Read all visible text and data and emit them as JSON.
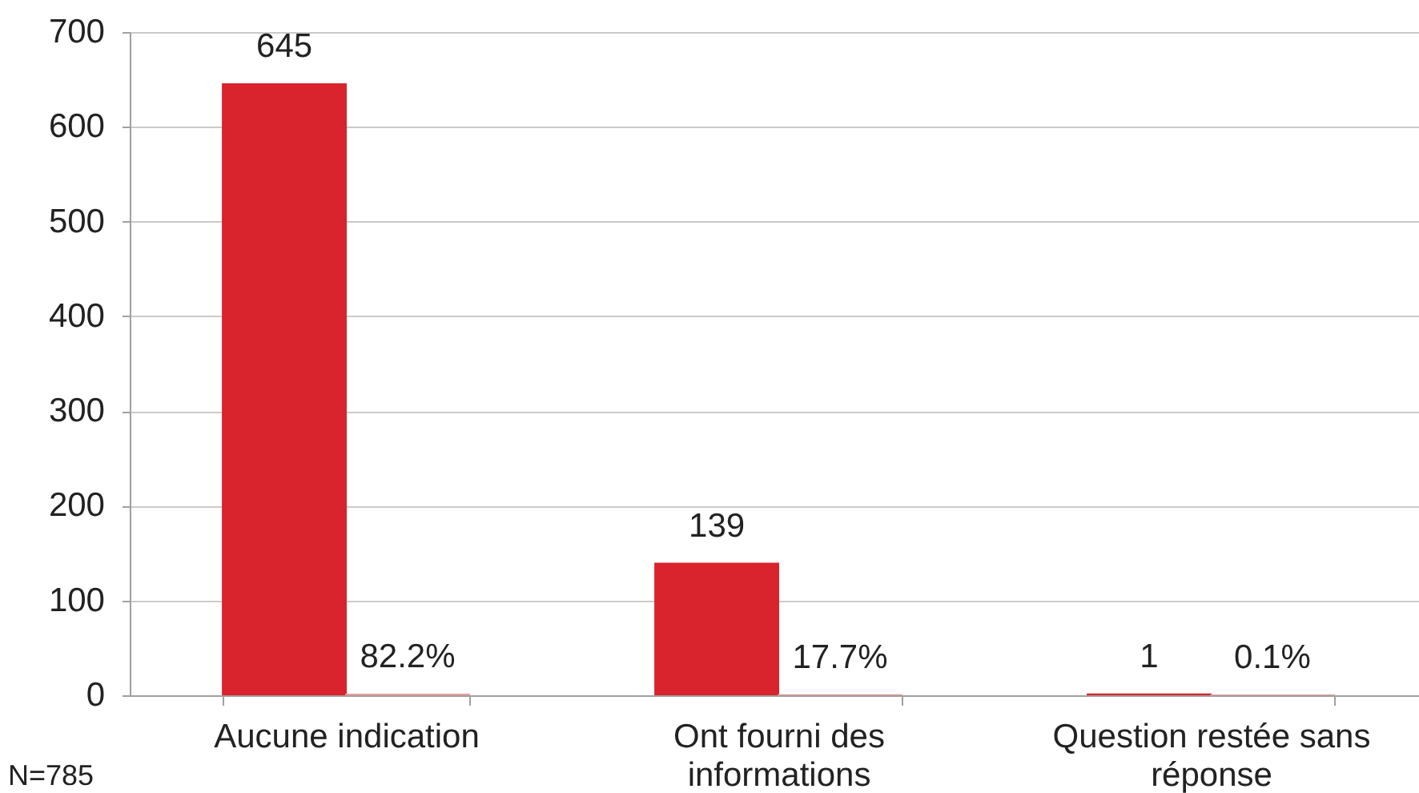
{
  "chart_data": {
    "type": "bar",
    "categories": [
      "Aucune indication",
      "Ont fourni des informations",
      "Question restée sans réponse"
    ],
    "series": [
      {
        "color": "#d9232d",
        "values": [
          645,
          139,
          1
        ],
        "value_labels": [
          "645",
          "139",
          "1"
        ]
      },
      {
        "color": "#eb9a9f",
        "values": [
          0.822,
          0.177,
          0.001
        ],
        "value_labels": [
          "82.2%",
          "17.7%",
          "0.1%"
        ]
      }
    ],
    "ylim": [
      0,
      700
    ],
    "yticks": [
      0,
      100,
      200,
      300,
      400,
      500,
      600,
      700
    ],
    "grid": "y",
    "annotations": [
      "N=785"
    ]
  }
}
